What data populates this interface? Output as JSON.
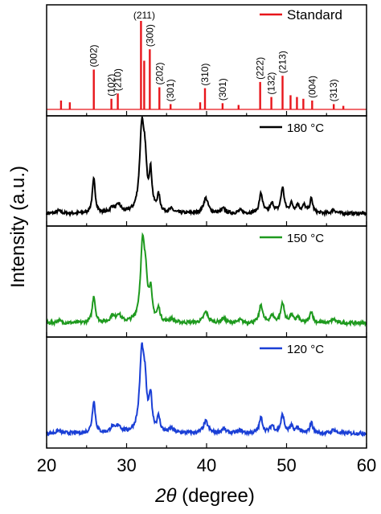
{
  "chart_data": {
    "type": "line",
    "xlabel_italic": "2θ",
    "xlabel_rest": " (degree)",
    "ylabel": "Intensity (a.u.)",
    "xlim": [
      20,
      60
    ],
    "x_ticks": [
      20,
      30,
      40,
      50,
      60
    ],
    "panels": [
      {
        "legend": "Standard",
        "color": "#e8151b",
        "style": "sticks",
        "peaks": [
          {
            "x": 21.8,
            "h": 0.1
          },
          {
            "x": 22.9,
            "h": 0.08
          },
          {
            "x": 25.9,
            "h": 0.45
          },
          {
            "x": 28.1,
            "h": 0.12
          },
          {
            "x": 28.9,
            "h": 0.18
          },
          {
            "x": 31.8,
            "h": 1.0
          },
          {
            "x": 32.2,
            "h": 0.55
          },
          {
            "x": 32.9,
            "h": 0.68
          },
          {
            "x": 34.1,
            "h": 0.25
          },
          {
            "x": 35.5,
            "h": 0.06
          },
          {
            "x": 39.2,
            "h": 0.08
          },
          {
            "x": 39.8,
            "h": 0.24
          },
          {
            "x": 42.0,
            "h": 0.07
          },
          {
            "x": 44.0,
            "h": 0.05
          },
          {
            "x": 46.7,
            "h": 0.31
          },
          {
            "x": 48.1,
            "h": 0.14
          },
          {
            "x": 49.5,
            "h": 0.38
          },
          {
            "x": 50.5,
            "h": 0.16
          },
          {
            "x": 51.3,
            "h": 0.14
          },
          {
            "x": 52.1,
            "h": 0.12
          },
          {
            "x": 53.2,
            "h": 0.1
          },
          {
            "x": 55.9,
            "h": 0.06
          },
          {
            "x": 57.1,
            "h": 0.04
          }
        ],
        "labels": [
          {
            "text": "(002)",
            "x": 25.9
          },
          {
            "text": "(102)",
            "x": 28.1
          },
          {
            "text": "(210)",
            "x": 28.9
          },
          {
            "text": "(211)",
            "x": 31.8
          },
          {
            "text": "(300)",
            "x": 32.9
          },
          {
            "text": "(202)",
            "x": 34.1
          },
          {
            "text": "(301)",
            "x": 35.5
          },
          {
            "text": "(310)",
            "x": 39.8
          },
          {
            "text": "(301)",
            "x": 42.0
          },
          {
            "text": "(222)",
            "x": 46.7
          },
          {
            "text": "(132)",
            "x": 48.1
          },
          {
            "text": "(213)",
            "x": 49.5
          },
          {
            "text": "(004)",
            "x": 53.2
          },
          {
            "text": "(313)",
            "x": 55.9
          }
        ]
      },
      {
        "legend": "180 °C",
        "color": "#000000",
        "style": "xrd",
        "baseline": 0.08,
        "noise": 0.018,
        "peaks": [
          {
            "x": 21.5,
            "h": 0.03,
            "w": 0.3
          },
          {
            "x": 25.9,
            "h": 0.38,
            "w": 0.22
          },
          {
            "x": 28.2,
            "h": 0.06,
            "w": 0.3
          },
          {
            "x": 29.0,
            "h": 0.09,
            "w": 0.35
          },
          {
            "x": 31.9,
            "h": 0.92,
            "w": 0.32
          },
          {
            "x": 32.3,
            "h": 0.45,
            "w": 0.25
          },
          {
            "x": 33.0,
            "h": 0.42,
            "w": 0.22
          },
          {
            "x": 34.0,
            "h": 0.18,
            "w": 0.22
          },
          {
            "x": 35.6,
            "h": 0.04,
            "w": 0.3
          },
          {
            "x": 39.9,
            "h": 0.17,
            "w": 0.35
          },
          {
            "x": 42.1,
            "h": 0.05,
            "w": 0.3
          },
          {
            "x": 44.2,
            "h": 0.03,
            "w": 0.3
          },
          {
            "x": 46.8,
            "h": 0.22,
            "w": 0.25
          },
          {
            "x": 48.2,
            "h": 0.1,
            "w": 0.3
          },
          {
            "x": 49.5,
            "h": 0.28,
            "w": 0.25
          },
          {
            "x": 50.6,
            "h": 0.1,
            "w": 0.25
          },
          {
            "x": 51.4,
            "h": 0.09,
            "w": 0.25
          },
          {
            "x": 52.2,
            "h": 0.08,
            "w": 0.25
          },
          {
            "x": 53.1,
            "h": 0.16,
            "w": 0.22
          },
          {
            "x": 55.9,
            "h": 0.04,
            "w": 0.3
          }
        ]
      },
      {
        "legend": "150 °C",
        "color": "#1e9a1e",
        "style": "xrd",
        "baseline": 0.12,
        "noise": 0.018,
        "peaks": [
          {
            "x": 21.5,
            "h": 0.03,
            "w": 0.3
          },
          {
            "x": 25.9,
            "h": 0.3,
            "w": 0.22
          },
          {
            "x": 28.2,
            "h": 0.07,
            "w": 0.3
          },
          {
            "x": 29.0,
            "h": 0.09,
            "w": 0.35
          },
          {
            "x": 32.0,
            "h": 0.85,
            "w": 0.32
          },
          {
            "x": 32.4,
            "h": 0.35,
            "w": 0.25
          },
          {
            "x": 33.0,
            "h": 0.32,
            "w": 0.22
          },
          {
            "x": 34.0,
            "h": 0.14,
            "w": 0.22
          },
          {
            "x": 35.6,
            "h": 0.04,
            "w": 0.3
          },
          {
            "x": 39.9,
            "h": 0.12,
            "w": 0.35
          },
          {
            "x": 42.1,
            "h": 0.05,
            "w": 0.3
          },
          {
            "x": 44.2,
            "h": 0.03,
            "w": 0.3
          },
          {
            "x": 46.8,
            "h": 0.2,
            "w": 0.25
          },
          {
            "x": 48.2,
            "h": 0.08,
            "w": 0.3
          },
          {
            "x": 49.5,
            "h": 0.22,
            "w": 0.25
          },
          {
            "x": 50.6,
            "h": 0.08,
            "w": 0.25
          },
          {
            "x": 51.4,
            "h": 0.06,
            "w": 0.25
          },
          {
            "x": 53.1,
            "h": 0.13,
            "w": 0.22
          },
          {
            "x": 55.9,
            "h": 0.04,
            "w": 0.3
          }
        ]
      },
      {
        "legend": "120 °C",
        "color": "#1a3fd6",
        "style": "xrd",
        "baseline": 0.14,
        "noise": 0.02,
        "peaks": [
          {
            "x": 21.5,
            "h": 0.03,
            "w": 0.3
          },
          {
            "x": 25.9,
            "h": 0.36,
            "w": 0.22
          },
          {
            "x": 28.2,
            "h": 0.06,
            "w": 0.3
          },
          {
            "x": 29.0,
            "h": 0.08,
            "w": 0.35
          },
          {
            "x": 31.9,
            "h": 0.86,
            "w": 0.32
          },
          {
            "x": 32.3,
            "h": 0.4,
            "w": 0.25
          },
          {
            "x": 33.0,
            "h": 0.38,
            "w": 0.22
          },
          {
            "x": 34.0,
            "h": 0.16,
            "w": 0.22
          },
          {
            "x": 35.6,
            "h": 0.05,
            "w": 0.3
          },
          {
            "x": 39.9,
            "h": 0.13,
            "w": 0.35
          },
          {
            "x": 42.1,
            "h": 0.05,
            "w": 0.3
          },
          {
            "x": 44.2,
            "h": 0.03,
            "w": 0.3
          },
          {
            "x": 46.8,
            "h": 0.17,
            "w": 0.25
          },
          {
            "x": 48.2,
            "h": 0.08,
            "w": 0.3
          },
          {
            "x": 49.5,
            "h": 0.2,
            "w": 0.25
          },
          {
            "x": 50.6,
            "h": 0.07,
            "w": 0.25
          },
          {
            "x": 51.4,
            "h": 0.06,
            "w": 0.25
          },
          {
            "x": 53.1,
            "h": 0.12,
            "w": 0.22
          },
          {
            "x": 55.9,
            "h": 0.04,
            "w": 0.3
          }
        ]
      }
    ]
  }
}
